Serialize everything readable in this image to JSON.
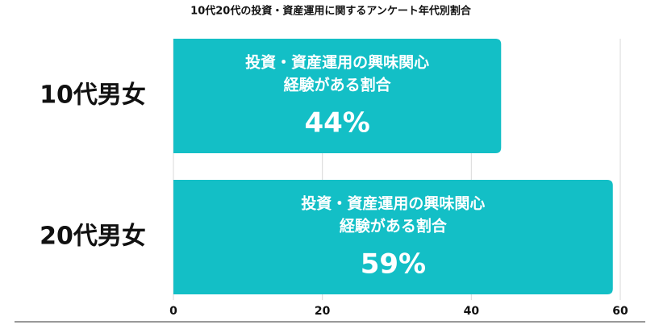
{
  "chart_data": {
    "type": "hbar",
    "title": "10代20代の投資・資産運用に関するアンケート年代別割合",
    "bar_label_lines": [
      "投資・資産運用の興味関心",
      "経験がある割合"
    ],
    "categories": [
      "10代男女",
      "20代男女"
    ],
    "values": [
      44,
      59
    ],
    "value_labels": [
      "44%",
      "59%"
    ],
    "color": "#13bfc6",
    "xlim": [
      0,
      60
    ],
    "xticks": [
      0,
      20,
      40,
      60
    ],
    "grid": true
  }
}
